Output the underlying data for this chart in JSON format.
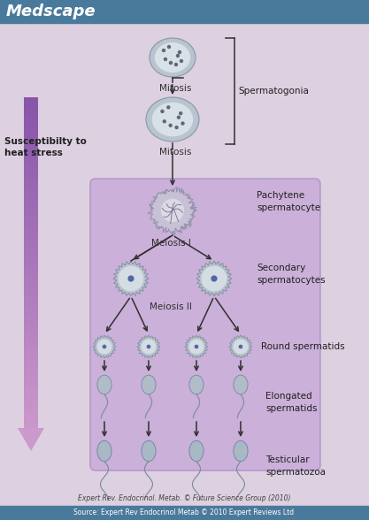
{
  "title": "Medscape",
  "title_bar_color": "#4a7a9b",
  "title_text_color": "#ffffff",
  "bg_color": "#ddd0e0",
  "inner_box_color": "#c8a8d8",
  "footer_bar_color": "#4a7a9b",
  "footer_text": "Source: Expert Rev Endocrinol Metab © 2010 Expert Reviews Ltd",
  "citation_text": "Expert Rev. Endocrinol. Metab. © Future Science Group (2010)",
  "labels": {
    "spermatogonia": "Spermatogonia",
    "pachytene": "Pachytene\nspermatocyte",
    "secondary": "Secondary\nspermatocytes",
    "round": "Round spermatids",
    "elongated": "Elongated\nspermatids",
    "testicular": "Testicular\nspermatozoa",
    "mitosis1": "Mitosis",
    "mitosis2": "Mitosis",
    "meiosis1": "Meiosis I",
    "meiosis2": "Meiosis II",
    "susceptibility": "Susceptibilty to\nheat stress"
  }
}
